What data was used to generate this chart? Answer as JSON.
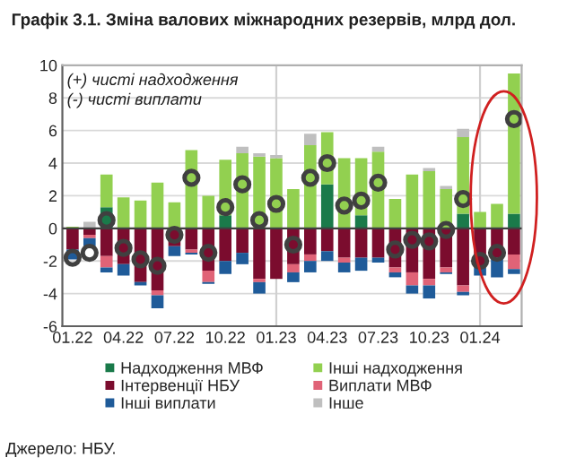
{
  "chart_data": {
    "type": "bar",
    "stacked": true,
    "title": "Графік 3.1. Зміна валових міжнародних резервів, млрд дол.",
    "categories": [
      "01.22",
      null,
      null,
      "04.22",
      null,
      null,
      "07.22",
      null,
      null,
      "10.22",
      null,
      null,
      "01.23",
      null,
      null,
      "04.23",
      null,
      null,
      "07.23",
      null,
      null,
      "10.23",
      null,
      null,
      "01.24",
      null,
      null
    ],
    "series": [
      {
        "name": "Надходження МВФ",
        "color": "#1a7a4a",
        "values": [
          0,
          0,
          1.3,
          0,
          0,
          0,
          0,
          0,
          0,
          0.8,
          0,
          0,
          0,
          0,
          0,
          2.7,
          0,
          0.8,
          0,
          0,
          0,
          0,
          0,
          0.9,
          0,
          0,
          0.9
        ]
      },
      {
        "name": "Інші надходження",
        "color": "#92d050",
        "values": [
          0.1,
          0,
          2.0,
          1.9,
          1.7,
          2.8,
          1.6,
          4.8,
          2.0,
          3.4,
          4.6,
          4.4,
          4.3,
          2.4,
          5.1,
          3.2,
          4.3,
          3.5,
          4.7,
          1.8,
          3.3,
          3.5,
          2.4,
          4.7,
          1.0,
          1.5,
          8.6
        ]
      },
      {
        "name": "Інтервенції НБУ",
        "color": "#7b0c2e",
        "values": [
          -1.3,
          -0.4,
          -1.7,
          -2.2,
          -3.3,
          -3.8,
          -1.1,
          -1.3,
          -2.6,
          -2.0,
          -1.5,
          -3.1,
          -3.1,
          -2.2,
          -1.6,
          -1.4,
          -1.8,
          -1.8,
          -1.8,
          -2.4,
          -2.7,
          -3.1,
          -2.4,
          -3.5,
          -2.4,
          -1.8,
          -1.6
        ]
      },
      {
        "name": "Виплати МВФ",
        "color": "#e06377",
        "values": [
          0,
          -0.2,
          -0.7,
          0,
          0,
          -0.3,
          0,
          -0.2,
          -0.7,
          0,
          0,
          -0.2,
          0,
          -0.5,
          -0.4,
          0,
          -0.3,
          0,
          0,
          -0.3,
          -0.8,
          -0.4,
          -0.3,
          -0.4,
          0,
          0,
          -0.9
        ]
      },
      {
        "name": "Інші виплати",
        "color": "#1f5b99",
        "values": [
          -0.6,
          -0.5,
          -0.3,
          -0.7,
          -0.2,
          -0.8,
          -0.6,
          -0.1,
          -0.1,
          -0.8,
          -0.7,
          -0.7,
          0,
          -0.6,
          -0.7,
          -0.6,
          -0.6,
          -0.8,
          -0.3,
          -0.3,
          -0.5,
          -0.8,
          -0.1,
          -0.2,
          -0.5,
          -1.2,
          -0.3
        ]
      },
      {
        "name": "Інше",
        "color": "#bfbfbf",
        "values": [
          0,
          0.4,
          0,
          0,
          0,
          0,
          0,
          0,
          0,
          0,
          0.4,
          0.2,
          0.2,
          0,
          0.7,
          0,
          0,
          0,
          0.3,
          0,
          0,
          0.2,
          0.2,
          0.5,
          0,
          0,
          0
        ]
      },
      {
        "type": "scatter",
        "color": "#404040",
        "marker": "circle",
        "values": [
          -1.8,
          -1.5,
          0.5,
          -1.2,
          -1.9,
          -2.3,
          -0.4,
          3.1,
          -1.5,
          1.3,
          2.7,
          0.5,
          1.5,
          -1.0,
          3.1,
          4.0,
          1.4,
          1.7,
          2.8,
          -1.3,
          -0.7,
          -0.8,
          -0.1,
          1.8,
          -2.0,
          -1.5,
          6.7
        ]
      }
    ],
    "ylim": [
      -6,
      10
    ],
    "yticks": [
      -6,
      -4,
      -2,
      0,
      2,
      4,
      6,
      8,
      10
    ],
    "grid": "y",
    "legend": "bottom",
    "ref_lines": [
      {
        "axis": "x",
        "value": "01.23",
        "color": "#d0d0d0"
      },
      {
        "axis": "x",
        "value": "01.24",
        "color": "#d0d0d0"
      }
    ],
    "annotations": [
      "(+) чисті надходження",
      "(-) чисті виплати",
      "Джерело: НБУ."
    ]
  }
}
